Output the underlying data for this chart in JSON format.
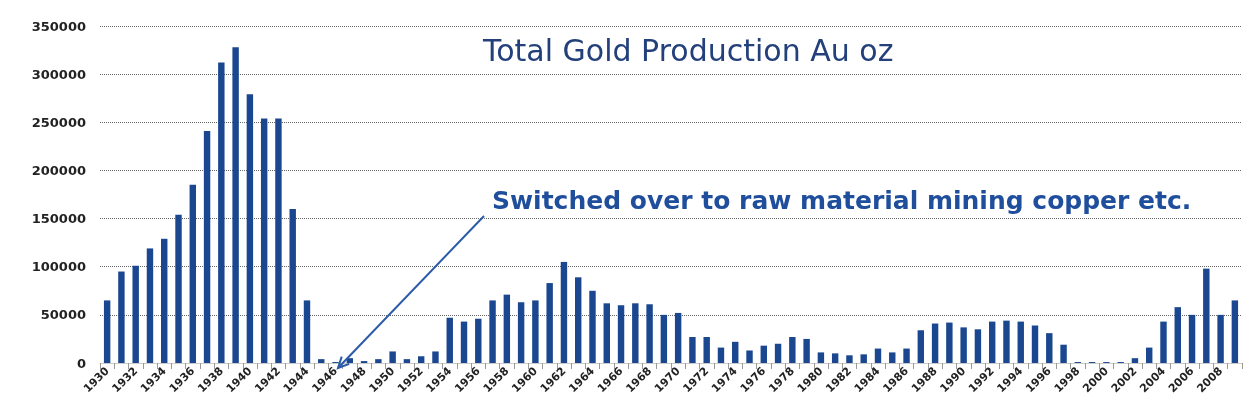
{
  "chart_data": {
    "type": "bar",
    "title": "Total Gold Production Au oz",
    "categories": [
      "1930",
      null,
      "1932",
      null,
      "1934",
      null,
      "1936",
      null,
      "1938",
      null,
      "1940",
      null,
      "1942",
      null,
      "1944",
      null,
      "1946",
      null,
      "1948",
      null,
      "1950",
      null,
      "1952",
      null,
      "1954",
      null,
      "1956",
      null,
      "1958",
      null,
      "1960",
      null,
      "1962",
      null,
      "1964",
      null,
      "1966",
      null,
      "1968",
      null,
      "1970",
      null,
      "1972",
      null,
      "1974",
      null,
      "1976",
      null,
      "1978",
      null,
      "1980",
      null,
      "1982",
      null,
      "1984",
      null,
      "1986",
      null,
      "1988",
      null,
      "1990",
      null,
      "1992",
      null,
      "1994",
      null,
      "1996",
      null,
      "1998",
      null,
      "2000",
      null,
      "2002",
      null,
      "2004",
      null,
      "2006",
      null,
      "2008",
      null
    ],
    "values": [
      65000,
      95000,
      101000,
      119000,
      129000,
      154000,
      185000,
      241000,
      312000,
      328000,
      279000,
      254000,
      254000,
      160000,
      65000,
      4000,
      1000,
      5000,
      2000,
      4000,
      12000,
      4000,
      7000,
      12000,
      47000,
      43000,
      46000,
      65000,
      71000,
      63000,
      65000,
      83000,
      105000,
      89000,
      75000,
      62000,
      60000,
      62000,
      61000,
      50000,
      52000,
      27000,
      27000,
      16000,
      22000,
      13000,
      18000,
      20000,
      27000,
      25000,
      11000,
      10000,
      8000,
      9000,
      15000,
      11000,
      15000,
      34000,
      41000,
      42000,
      37000,
      35000,
      43000,
      44000,
      43000,
      39000,
      31000,
      19000,
      1000,
      1000,
      1000,
      1000,
      5000,
      16000,
      43000,
      58000,
      50000,
      98000,
      50000,
      65000
    ],
    "color": "#1a4790",
    "ylim": [
      0,
      350000
    ],
    "yticks": [
      0,
      50000,
      100000,
      150000,
      200000,
      250000,
      300000,
      350000
    ],
    "grid": "y",
    "annotations": [
      "Switched over to raw material mining copper etc."
    ]
  }
}
